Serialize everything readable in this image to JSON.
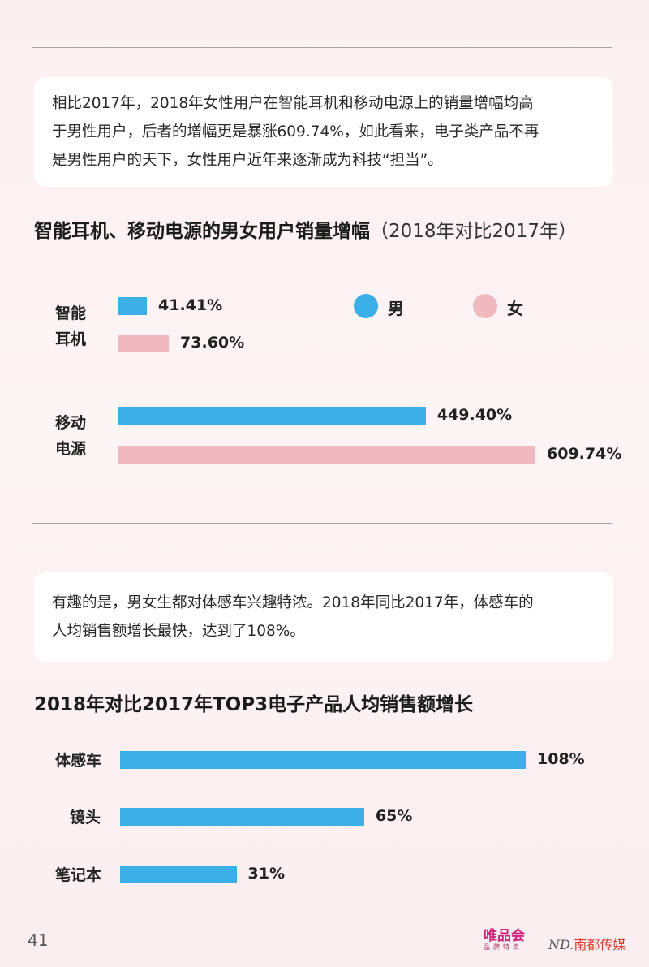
{
  "intro1": {
    "lines": [
      "相比2017年，2018年女性用户在智能耳机和移动电源上的销量增幅均高",
      "于男性用户，后者的增幅更是暴涨609.74%，如此看来，电子类产品不再",
      "是男性用户的天下，女性用户近年来逐渐成为科技“担当”。"
    ]
  },
  "intro2": {
    "lines": [
      "有趣的是，男女生都对体感车兴趣特浓。2018年同比2017年，体感车的",
      "人均销售额增长最快，达到了108%。"
    ]
  },
  "chart_data": [
    {
      "type": "bar",
      "orientation": "horizontal",
      "title": "智能耳机、移动电源的男女用户销量增幅",
      "subtitle": "（2018年对比2017年）",
      "categories": [
        [
          "智能",
          "耳机"
        ],
        [
          "移动",
          "电源"
        ]
      ],
      "series": [
        {
          "name": "男",
          "color": "#3cb0e6",
          "values": [
            41.41,
            449.4
          ],
          "labels": [
            "41.41%",
            "449.40%"
          ]
        },
        {
          "name": "女",
          "color": "#f0b9c0",
          "values": [
            73.6,
            609.74
          ],
          "labels": [
            "73.60%",
            "609.74%"
          ]
        }
      ],
      "xlim": [
        0,
        609.74
      ],
      "legend": "top-right",
      "grid": false
    },
    {
      "type": "bar",
      "orientation": "horizontal",
      "title": "2018年对比2017年TOP3电子产品人均销售额增长",
      "categories": [
        "体感车",
        "镜头",
        "笔记本"
      ],
      "values": [
        108,
        65,
        31
      ],
      "labels": [
        "108%",
        "65%",
        "31%"
      ],
      "color": "#3cb0e6",
      "xlim": [
        0,
        108
      ],
      "grid": false
    }
  ],
  "footer": {
    "page_number": "41",
    "brand1": "唯品会",
    "brand1_sub": "品牌特卖",
    "brand2_mark": "ND.",
    "brand2": "南都传媒"
  }
}
